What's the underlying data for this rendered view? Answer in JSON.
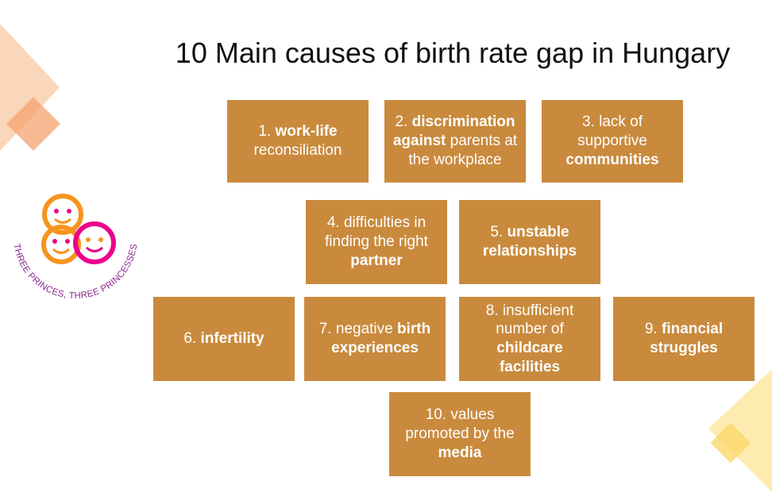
{
  "title": "10 Main causes of birth rate gap in Hungary",
  "logo": {
    "text": "THREE PRINCES, THREE PRINCESSES",
    "colors": [
      "#f7941d",
      "#ec008c",
      "#8b2a8e"
    ]
  },
  "colors": {
    "box": "#c98a3d",
    "deco_left": "#f6b98a",
    "deco_right": "#fbe08a"
  },
  "causes": [
    {
      "num": "1.",
      "pre": "",
      "bold": "work-life",
      "post": "reconsiliation"
    },
    {
      "num": "2.",
      "pre": "",
      "bold": "discrimination against",
      "post": "parents at the workplace"
    },
    {
      "num": "3.",
      "pre": "lack of supportive",
      "bold": "communities",
      "post": ""
    },
    {
      "num": "4.",
      "pre": "difficulties in finding the right",
      "bold": "partner",
      "post": ""
    },
    {
      "num": "5.",
      "pre": "",
      "bold": "unstable relationships",
      "post": ""
    },
    {
      "num": "6.",
      "pre": "",
      "bold": "infertility",
      "post": ""
    },
    {
      "num": "7.",
      "pre": "negative",
      "bold": "birth experiences",
      "post": ""
    },
    {
      "num": "8.",
      "pre": "insufficient number of",
      "bold": "childcare facilities",
      "post": ""
    },
    {
      "num": "9.",
      "pre": "",
      "bold": "financial struggles",
      "post": ""
    },
    {
      "num": "10.",
      "pre": "values promoted by the",
      "bold": "media",
      "post": ""
    }
  ]
}
